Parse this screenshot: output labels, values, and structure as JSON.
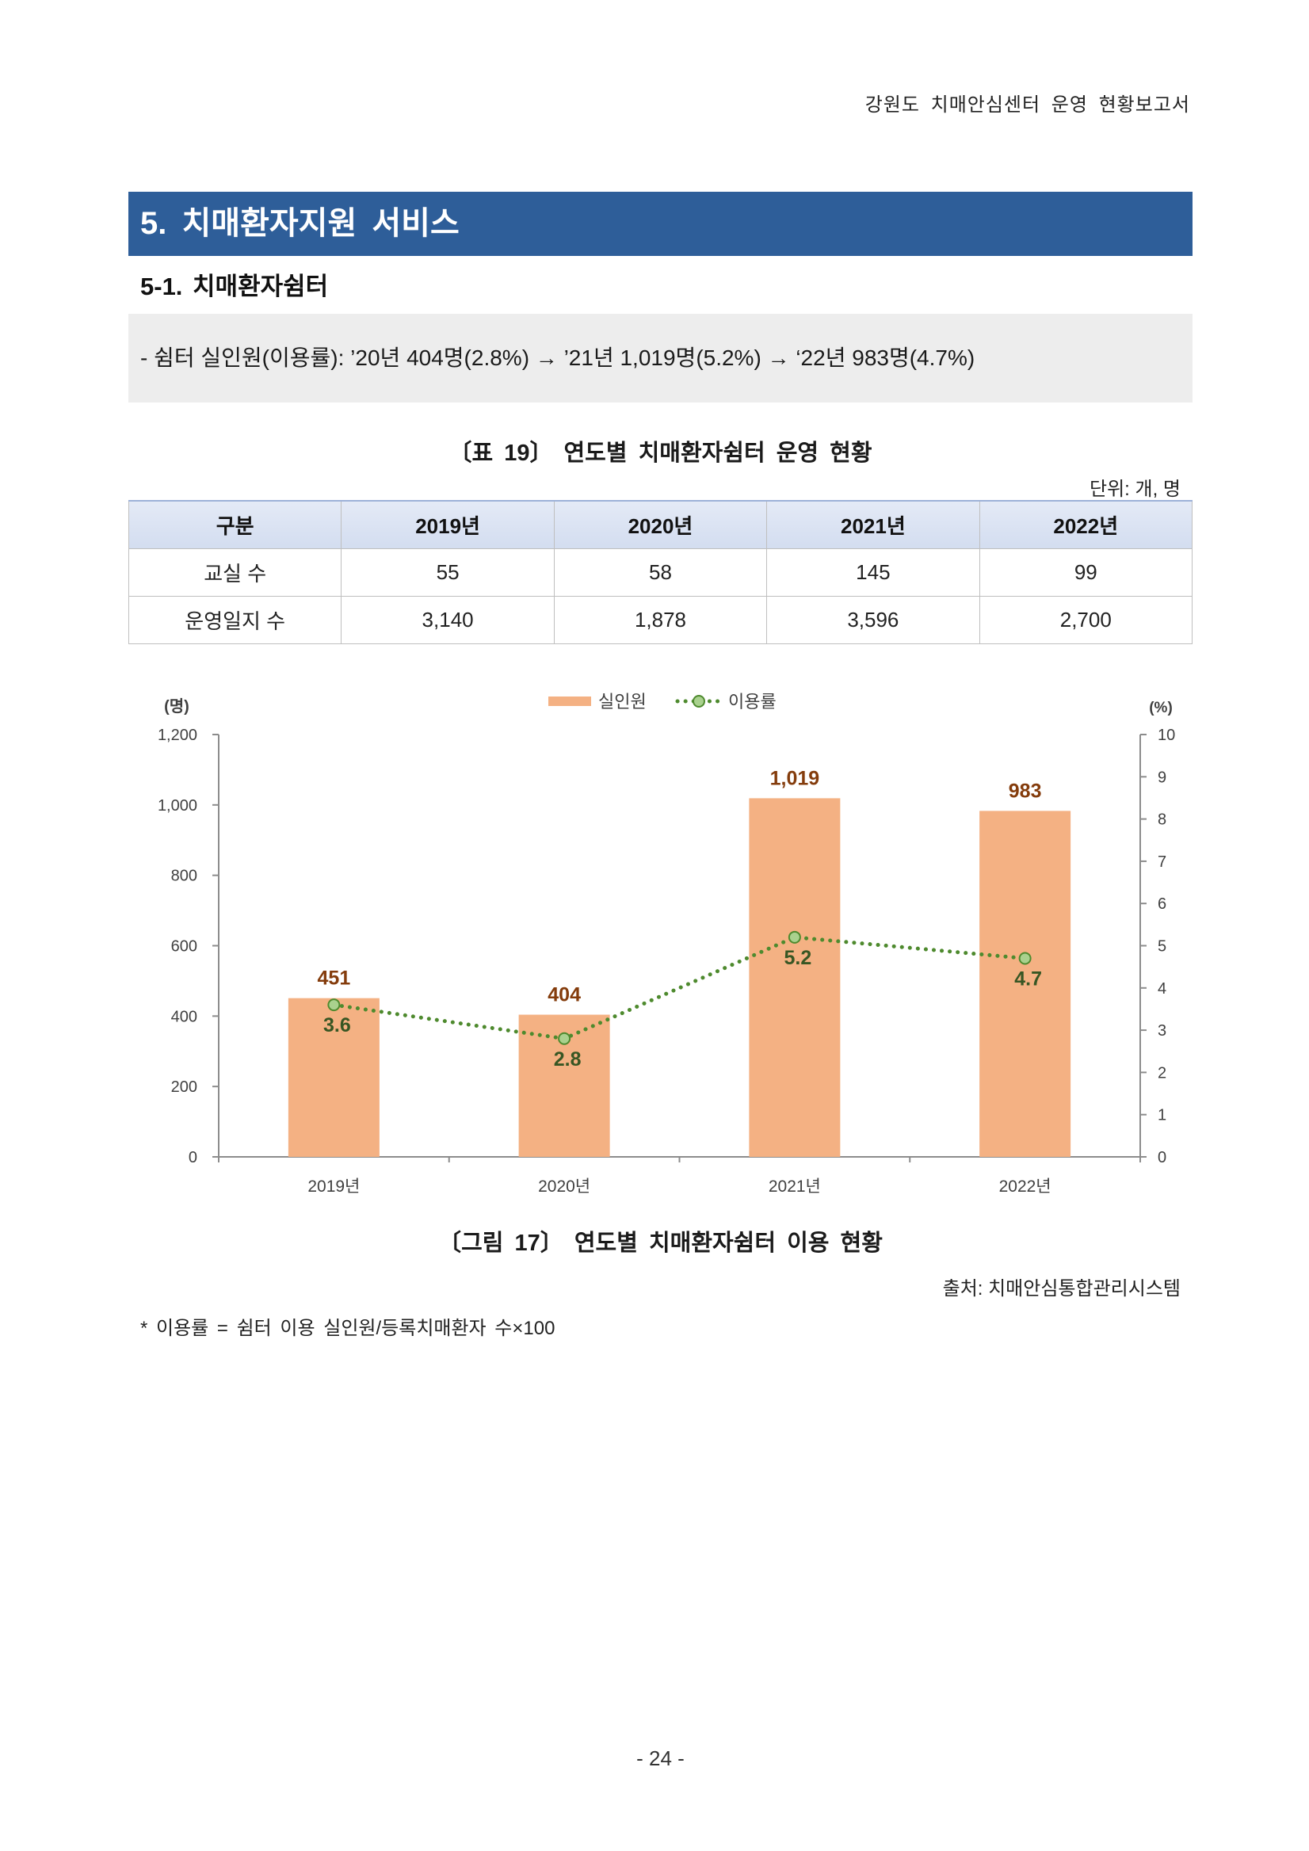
{
  "header": {
    "running_title": "강원도 치매안심센터 운영 현황보고서"
  },
  "section": {
    "title": "5. 치매환자지원 서비스"
  },
  "subsection": {
    "title": "5-1. 치매환자쉼터"
  },
  "summary": {
    "text": "- 쉼터 실인원(이용률): ’20년 404명(2.8%) → ’21년 1,019명(5.2%) → ‘22년 983명(4.7%)"
  },
  "table": {
    "caption": "〔표 19〕 연도별 치매환자쉼터 운영 현황",
    "unit": "단위: 개, 명",
    "headers": [
      "구분",
      "2019년",
      "2020년",
      "2021년",
      "2022년"
    ],
    "rows": [
      [
        "교실 수",
        "55",
        "58",
        "145",
        "99"
      ],
      [
        "운영일지 수",
        "3,140",
        "1,878",
        "3,596",
        "2,700"
      ]
    ]
  },
  "chart_data": {
    "type": "bar",
    "categories": [
      "2019년",
      "2020년",
      "2021년",
      "2022년"
    ],
    "series": [
      {
        "name": "실인원",
        "type": "bar",
        "axis": "left",
        "values": [
          451,
          404,
          1019,
          983
        ],
        "value_labels": [
          "451",
          "404",
          "1,019",
          "983"
        ],
        "color": "#F4B183",
        "label_color": "#843C0C"
      },
      {
        "name": "이용률",
        "type": "line",
        "axis": "right",
        "values": [
          3.6,
          2.8,
          5.2,
          4.7
        ],
        "value_labels": [
          "3.6",
          "2.8",
          "5.2",
          "4.7"
        ],
        "color": "#4E8A2E",
        "marker_fill": "#A9D18E",
        "label_color": "#375623"
      }
    ],
    "y_left": {
      "unit_label": "(명)",
      "range": [
        0,
        1200
      ],
      "tick_labels": [
        "0",
        "200",
        "400",
        "600",
        "800",
        "1,000",
        "1,200"
      ]
    },
    "y_right": {
      "unit_label": "(%)",
      "range": [
        0,
        10
      ],
      "tick_labels": [
        "0",
        "1",
        "2",
        "3",
        "4",
        "5",
        "6",
        "7",
        "8",
        "9",
        "10"
      ]
    },
    "grid": false,
    "legend_position": "top-center",
    "axis_color": "#8C8C8C",
    "tick_label_color": "#404040"
  },
  "figure": {
    "caption": "〔그림 17〕 연도별 치매환자쉼터 이용 현황",
    "source": "출처: 치매안심통합관리시스템"
  },
  "footnote": "* 이용률 = 쉼터 이용 실인원/등록치매환자 수×100",
  "page_number": "- 24 -",
  "colors": {
    "section_bar": "#2E5E99",
    "summary_box": "#EDEDED",
    "table_header": "#D9E2F3"
  }
}
